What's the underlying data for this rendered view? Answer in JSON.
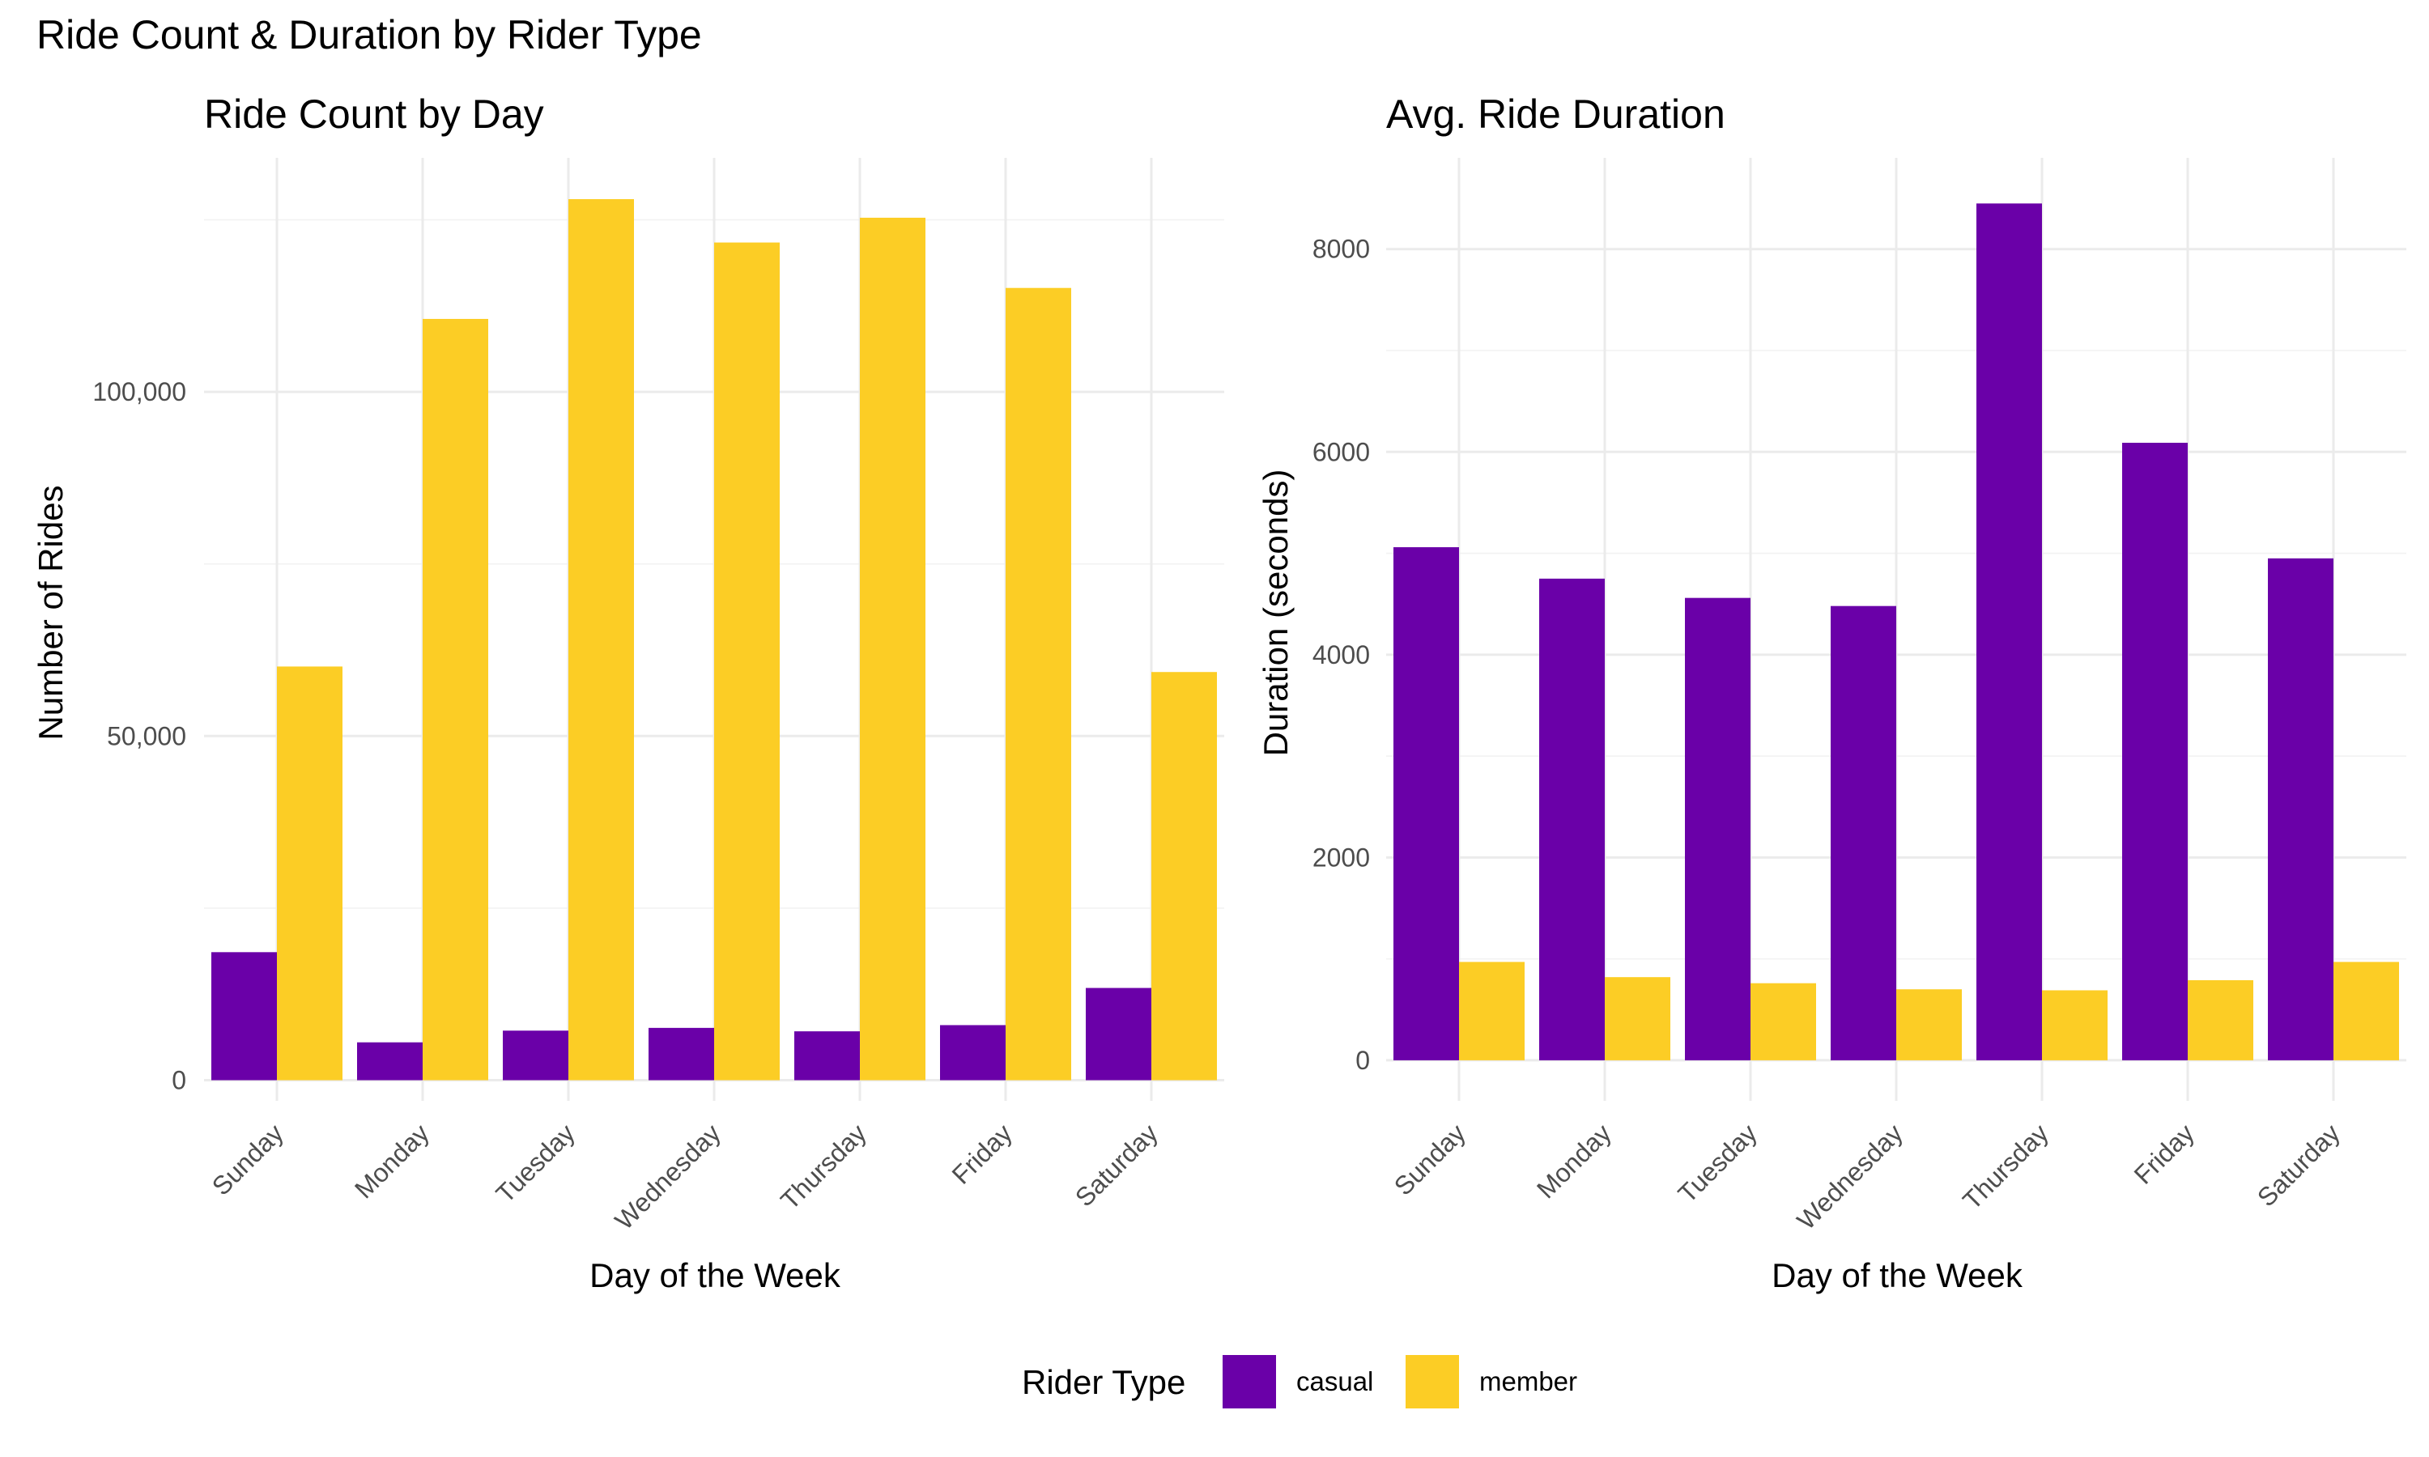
{
  "figure_title": "Ride Count & Duration by Rider Type",
  "legend": {
    "title": "Rider Type",
    "items": [
      {
        "label": "casual",
        "color": "#6a00a8"
      },
      {
        "label": "member",
        "color": "#fccd25"
      }
    ]
  },
  "chart_data": [
    {
      "type": "bar",
      "title": "Ride Count by Day",
      "xlabel": "Day of the Week",
      "ylabel": "Number of Rides",
      "categories": [
        "Sunday",
        "Monday",
        "Tuesday",
        "Wednesday",
        "Thursday",
        "Friday",
        "Saturday"
      ],
      "series": [
        {
          "name": "casual",
          "color": "#6a00a8",
          "values": [
            18600,
            5500,
            7200,
            7600,
            7100,
            8000,
            13400
          ]
        },
        {
          "name": "member",
          "color": "#fccd25",
          "values": [
            60100,
            110600,
            128000,
            121700,
            125300,
            115100,
            59300
          ]
        }
      ],
      "ylim": [
        -3000,
        134000
      ],
      "yticks": [
        0,
        50000,
        100000
      ],
      "ytick_labels": [
        "0",
        "50,000",
        "100,000"
      ],
      "grid": true,
      "legend_position": "bottom"
    },
    {
      "type": "bar",
      "title": "Avg. Ride Duration",
      "xlabel": "Day of the Week",
      "ylabel": "Duration (seconds)",
      "categories": [
        "Sunday",
        "Monday",
        "Tuesday",
        "Wednesday",
        "Thursday",
        "Friday",
        "Saturday"
      ],
      "series": [
        {
          "name": "casual",
          "color": "#6a00a8",
          "values": [
            5060,
            4750,
            4560,
            4480,
            8450,
            6090,
            4950
          ]
        },
        {
          "name": "member",
          "color": "#fccd25",
          "values": [
            970,
            820,
            760,
            700,
            690,
            790,
            970
          ]
        }
      ],
      "ylim": [
        -400,
        8900
      ],
      "yticks": [
        0,
        2000,
        4000,
        6000,
        8000
      ],
      "ytick_labels": [
        "0",
        "2000",
        "4000",
        "6000",
        "8000"
      ],
      "grid": true,
      "legend_position": "bottom"
    }
  ]
}
